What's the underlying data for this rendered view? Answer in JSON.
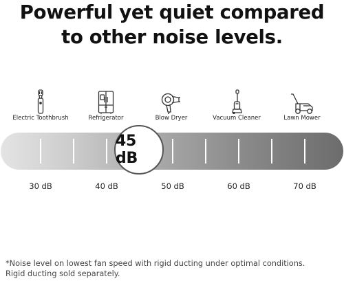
{
  "headline": {
    "line1": "Powerful yet quiet compared",
    "line2": "to other noise levels."
  },
  "appliances": [
    {
      "label": "Electric Toothbrush",
      "icon": "toothbrush-icon"
    },
    {
      "label": "Refrigerator",
      "icon": "refrigerator-icon"
    },
    {
      "label": "Blow Dryer",
      "icon": "blow-dryer-icon"
    },
    {
      "label": "Vacuum Cleaner",
      "icon": "vacuum-cleaner-icon"
    },
    {
      "label": "Lawn Mower",
      "icon": "lawn-mower-icon"
    }
  ],
  "meter": {
    "value": 45,
    "value_label": "45 dB",
    "scale": [
      "30 dB",
      "40 dB",
      "50 dB",
      "60 dB",
      "70 dB"
    ]
  },
  "footnote": {
    "line1": "*Noise level on lowest fan speed with rigid ducting under optimal conditions.",
    "line2": "Rigid ducting sold separately."
  }
}
